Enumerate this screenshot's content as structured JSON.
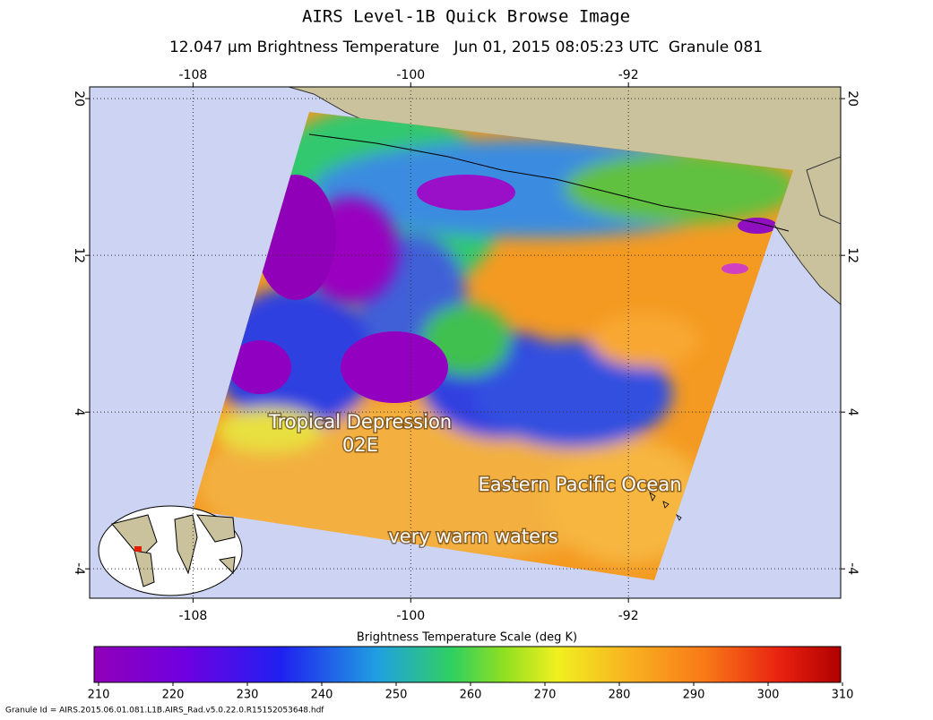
{
  "header": {
    "title": "AIRS Level-1B Quick Browse Image",
    "subtitle": "12.047 μm Brightness Temperature   Jun 01, 2015 08:05:23 UTC  Granule 081"
  },
  "map": {
    "lonlim": [
      -111.8,
      -84.2
    ],
    "latlim": [
      20.6,
      -5.5
    ],
    "lon_ticks": [
      -108,
      -100,
      -92
    ],
    "lat_ticks": [
      20,
      12,
      4,
      -4
    ],
    "annotations": [
      "Tropical Depression",
      "02E",
      "Eastern Pacific Ocean",
      "very warm waters"
    ]
  },
  "colorbar": {
    "title": "Brightness Temperature Scale (deg K)",
    "range": [
      210,
      310
    ],
    "ticks": [
      210,
      220,
      230,
      240,
      250,
      260,
      270,
      280,
      290,
      300,
      310
    ]
  },
  "footer": "Granule Id = AIRS.2015.06.01.081.L1B.AIRS_Rad.v5.0.22.0.R15152053648.hdf"
}
